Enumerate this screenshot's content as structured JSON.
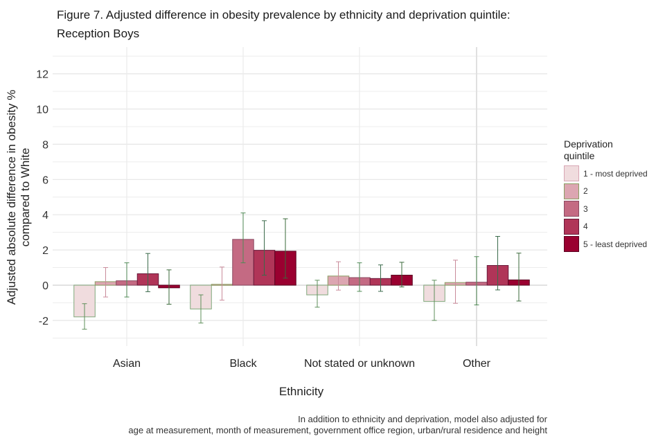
{
  "title_line1": "Figure 7. Adjusted difference in obesity prevalence by ethnicity and deprivation quintile:",
  "title_line2": "Reception Boys",
  "caption_line1": "In addition to ethnicity and deprivation, model also adjusted for",
  "caption_line2": "age at measurement, month of measurement, government office region, urban/rural residence and height",
  "chart_data": {
    "type": "bar",
    "title": "Figure 7. Adjusted difference in obesity prevalence by ethnicity and deprivation quintile: Reception Boys",
    "xlabel": "Ethnicity",
    "ylabel_line1": "Adjusted absolute difference in obesity %",
    "ylabel_line2": "compared to White",
    "ylim": [
      -3.5,
      13.3
    ],
    "yticks": [
      -2,
      0,
      2,
      4,
      6,
      8,
      10,
      12
    ],
    "ytick_labels": [
      "-2",
      "0",
      "2",
      "4",
      "6",
      "8",
      "10",
      "12"
    ],
    "grid": true,
    "categories": [
      "Asian",
      "Black",
      "Not stated or unknown",
      "Other"
    ],
    "legend": {
      "title_line1": "Deprivation",
      "title_line2": "quintile",
      "position": "right"
    },
    "series": [
      {
        "name": "1 - most deprived",
        "color": "#f0dcde",
        "values": [
          -1.8,
          -1.35,
          -0.55,
          -0.92
        ],
        "ci_low": [
          -2.5,
          -2.15,
          -1.25,
          -2.0
        ],
        "ci_high": [
          -1.05,
          -0.55,
          0.28,
          0.28
        ]
      },
      {
        "name": "2",
        "color": "#dca6b1",
        "values": [
          0.2,
          0.05,
          0.52,
          0.15
        ],
        "ci_low": [
          -0.67,
          -0.85,
          -0.28,
          -1.03
        ],
        "ci_high": [
          1.0,
          1.03,
          1.33,
          1.42
        ]
      },
      {
        "name": "3",
        "color": "#c46a83",
        "values": [
          0.25,
          2.6,
          0.43,
          0.17
        ],
        "ci_low": [
          -0.67,
          1.27,
          -0.35,
          -1.12
        ],
        "ci_high": [
          1.27,
          4.1,
          1.27,
          1.62
        ]
      },
      {
        "name": "4",
        "color": "#b03558",
        "values": [
          0.65,
          1.98,
          0.38,
          1.12
        ],
        "ci_low": [
          -0.37,
          0.57,
          -0.35,
          -0.27
        ],
        "ci_high": [
          1.8,
          3.66,
          1.15,
          2.77
        ]
      },
      {
        "name": "5 - least deprived",
        "color": "#9a0030",
        "values": [
          -0.15,
          1.93,
          0.57,
          0.3
        ],
        "ci_low": [
          -1.08,
          0.4,
          -0.1,
          -0.9
        ],
        "ci_high": [
          0.87,
          3.77,
          1.3,
          1.82
        ]
      }
    ]
  }
}
